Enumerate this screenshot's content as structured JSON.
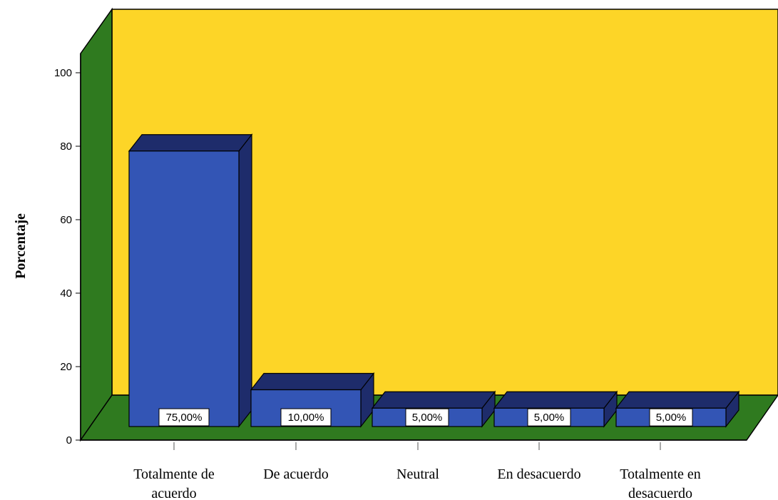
{
  "chart_data": {
    "type": "bar",
    "title": "",
    "xlabel": "",
    "ylabel": "Porcentaje",
    "ylim": [
      0,
      100
    ],
    "yticks": [
      0,
      20,
      40,
      60,
      80,
      100
    ],
    "categories": [
      [
        "Totalmente de",
        "acuerdo"
      ],
      [
        "De acuerdo"
      ],
      [
        "Neutral"
      ],
      [
        "En desacuerdo"
      ],
      [
        "Totalmente en",
        "desacuerdo"
      ]
    ],
    "values": [
      75,
      10,
      5,
      5,
      5
    ],
    "data_labels": [
      "75,00%",
      "10,00%",
      "5,00%",
      "5,00%",
      "5,00%"
    ],
    "grid": false,
    "legend": "none",
    "three_d": true
  },
  "colors": {
    "back_wall": "#FDD527",
    "side_floor": "#2F7A1F",
    "bar_front": "#3355B5",
    "bar_top": "#1E2C6B",
    "bar_side": "#1E2C6B"
  }
}
